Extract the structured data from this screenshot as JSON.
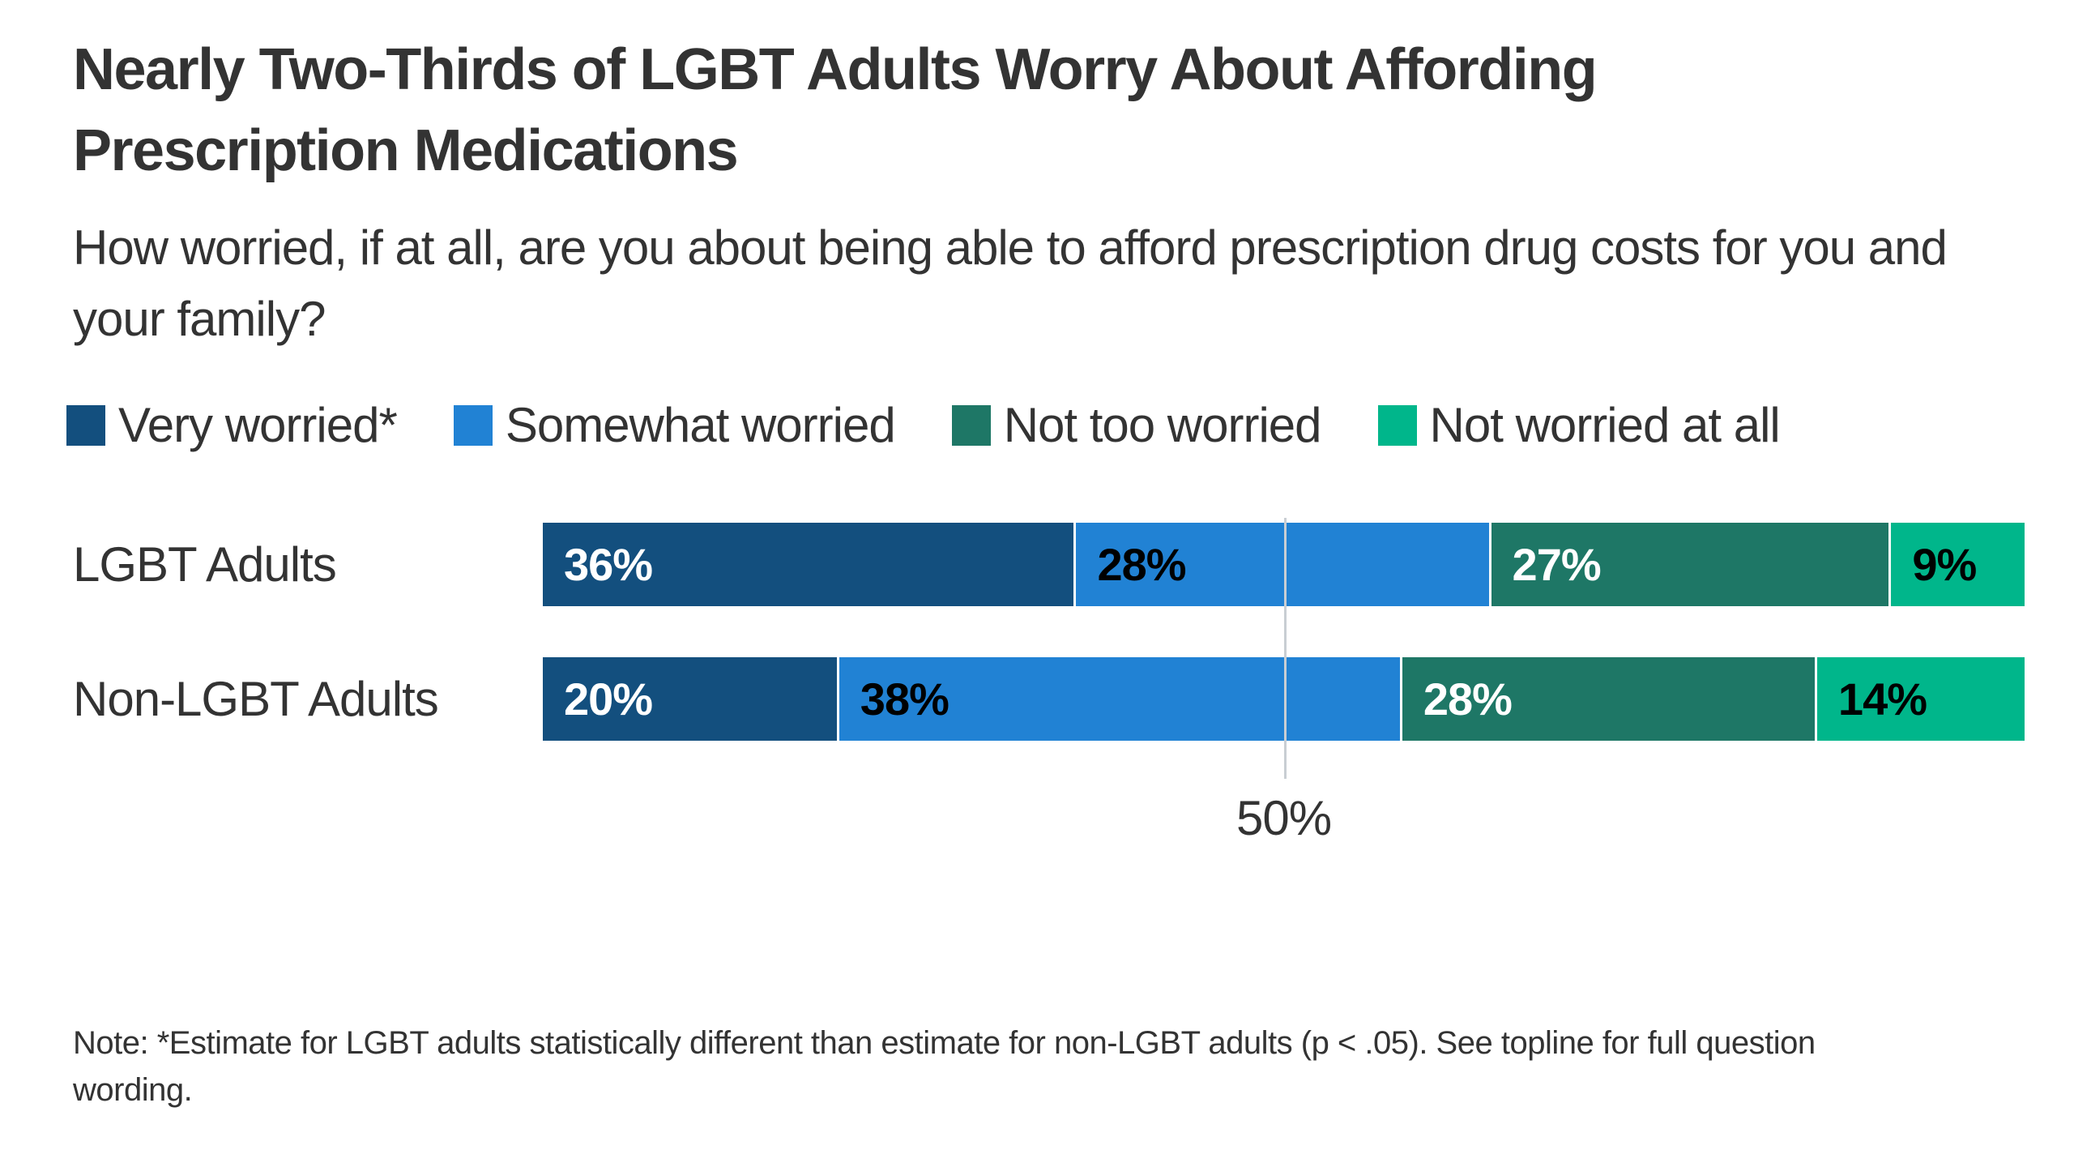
{
  "page": {
    "background": "#ffffff",
    "text_color": "#333333"
  },
  "header": {
    "title": "Nearly Two-Thirds of LGBT Adults Worry About Affording Prescription Medications",
    "subtitle": "How worried, if at all, are you about being able to afford prescription drug costs for you and your family?"
  },
  "chart_data": {
    "type": "bar",
    "orientation": "horizontal",
    "stacked": true,
    "xlim": [
      0,
      100
    ],
    "grid": false,
    "legend_position": "top",
    "categories": [
      "LGBT Adults",
      "Non-LGBT Adults"
    ],
    "series": [
      {
        "name": "Very worried*",
        "values": [
          36,
          20
        ],
        "color": "#134f7e",
        "label_color": "#ffffff"
      },
      {
        "name": "Somewhat worried",
        "values": [
          28,
          38
        ],
        "color": "#2182d4",
        "label_color": "#000000"
      },
      {
        "name": "Not too worried",
        "values": [
          27,
          28
        ],
        "color": "#1e7766",
        "label_color": "#ffffff"
      },
      {
        "name": "Not worried at all",
        "values": [
          9,
          14
        ],
        "color": "#00b68b",
        "label_color": "#000000"
      }
    ],
    "value_suffix": "%",
    "reference_line": {
      "value": 50,
      "label": "50%",
      "color": "#c9ced3"
    }
  },
  "note": "Note: *Estimate for LGBT adults statistically different than estimate for non-LGBT adults (p < .05). See topline for full question wording."
}
